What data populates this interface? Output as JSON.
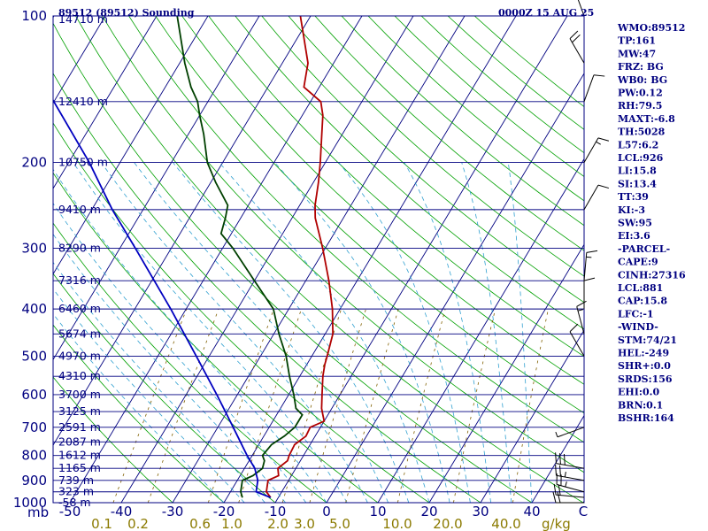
{
  "header": {
    "station": "89512 (89512) Sounding",
    "time": "0000Z 15 AUG 25"
  },
  "chart_data": {
    "type": "line",
    "title": "89512 (89512) Sounding",
    "xlabel": "",
    "ylabel": "mb",
    "xlim": [
      -50,
      50
    ],
    "ylim": [
      1000,
      100
    ],
    "y_scale": "log",
    "pressure_ticks": [
      100,
      200,
      300,
      400,
      500,
      600,
      700,
      800,
      900,
      1000
    ],
    "pressure_tick_labels": [
      "100",
      "200",
      "300",
      "400",
      "500",
      "600",
      "700",
      "800",
      "900",
      "1000"
    ],
    "temp_ticks": [
      -50,
      -40,
      -30,
      -20,
      -10,
      0,
      10,
      20,
      30,
      40,
      50
    ],
    "temp_tick_labels": [
      "-50",
      "-40",
      "-30",
      "-20",
      "-10",
      "0",
      "10",
      "20",
      "30",
      "40",
      "C"
    ],
    "mixing_ratio_ticks": [
      0.1,
      0.2,
      0.6,
      1.0,
      2.0,
      3.0,
      5.0,
      10.0,
      20.0,
      40.0
    ],
    "mixing_ratio_labels": [
      "0.1",
      "0.2",
      "0.6",
      "1.0",
      "2.0",
      "3.0",
      "5.0",
      "10.0",
      "20.0",
      "40.0"
    ],
    "mixing_ratio_unit": "g/kg",
    "height_labels": [
      {
        "p": 150,
        "label": "12410 m"
      },
      {
        "p": 200,
        "label": "10750 m"
      },
      {
        "p": 250,
        "label": "9410 m"
      },
      {
        "p": 300,
        "label": "8290 m"
      },
      {
        "p": 350,
        "label": "7316 m"
      },
      {
        "p": 400,
        "label": "6460 m"
      },
      {
        "p": 450,
        "label": "5674 m"
      },
      {
        "p": 500,
        "label": "4970 m"
      },
      {
        "p": 550,
        "label": "4310 m"
      },
      {
        "p": 600,
        "label": "3700 m"
      },
      {
        "p": 650,
        "label": "3125 m"
      },
      {
        "p": 700,
        "label": "2591 m"
      },
      {
        "p": 750,
        "label": "2087 m"
      },
      {
        "p": 800,
        "label": "1612 m"
      },
      {
        "p": 850,
        "label": "1165 m"
      },
      {
        "p": 900,
        "label": "739 m"
      },
      {
        "p": 950,
        "label": "323 m"
      },
      {
        "p": 1000,
        "label": "-58 m"
      }
    ],
    "top_height_label": {
      "p": 100,
      "label": "14710 m"
    },
    "series": [
      {
        "name": "",
        "color": "#b00000",
        "p": [
          976,
          950,
          925,
          900,
          880,
          850,
          820,
          800,
          760,
          730,
          700,
          680,
          660,
          640,
          600,
          550,
          520,
          500,
          450,
          400,
          350,
          300,
          260,
          245,
          220,
          200,
          175,
          160,
          150,
          140,
          125,
          110,
          100
        ],
        "t": [
          -11.5,
          -13,
          -13.5,
          -14,
          -12.5,
          -13.5,
          -12.5,
          -12.8,
          -13,
          -11.8,
          -12,
          -10,
          -11,
          -12,
          -13.5,
          -15.5,
          -16.5,
          -17,
          -18.5,
          -21.5,
          -25.5,
          -30.5,
          -35.5,
          -37,
          -39,
          -41,
          -44,
          -46,
          -48,
          -53,
          -55,
          -59,
          -62
        ]
      },
      {
        "name": "",
        "color": "#004000",
        "p": [
          976,
          950,
          925,
          900,
          880,
          850,
          820,
          800,
          760,
          730,
          700,
          680,
          660,
          640,
          600,
          550,
          500,
          450,
          400,
          350,
          300,
          280,
          260,
          245,
          220,
          200,
          175,
          160,
          150,
          140,
          125,
          110,
          100
        ],
        "t": [
          -17,
          -18,
          -18.5,
          -19,
          -17.5,
          -16.5,
          -17,
          -18,
          -17.5,
          -16,
          -15,
          -15,
          -15,
          -17,
          -19,
          -22,
          -25,
          -29,
          -33,
          -40,
          -48,
          -52,
          -53,
          -54,
          -59,
          -63,
          -67,
          -70,
          -72,
          -75,
          -79,
          -83,
          -86
        ]
      },
      {
        "name": "",
        "color": "#0000c0",
        "p": [
          976,
          950,
          900,
          850,
          800,
          700,
          600,
          500,
          400,
          300,
          250,
          200,
          150,
          100
        ],
        "t": [
          -11.5,
          -15,
          -16,
          -18,
          -21,
          -27,
          -34,
          -42.5,
          -53,
          -67,
          -76,
          -86,
          -100,
          -120
        ]
      }
    ],
    "wind_barbs": [
      {
        "p": 1000,
        "dir": 270,
        "spd": 20
      },
      {
        "p": 975,
        "dir": 275,
        "spd": 20
      },
      {
        "p": 950,
        "dir": 285,
        "spd": 25
      },
      {
        "p": 900,
        "dir": 280,
        "spd": 25
      },
      {
        "p": 850,
        "dir": 280,
        "spd": 30
      },
      {
        "p": 700,
        "dir": 250,
        "spd": 5
      },
      {
        "p": 500,
        "dir": 330,
        "spd": 10
      },
      {
        "p": 450,
        "dir": 345,
        "spd": 15
      },
      {
        "p": 400,
        "dir": 360,
        "spd": 10
      },
      {
        "p": 350,
        "dir": 5,
        "spd": 15
      },
      {
        "p": 250,
        "dir": 30,
        "spd": 10
      },
      {
        "p": 200,
        "dir": 30,
        "spd": 15
      },
      {
        "p": 150,
        "dir": 20,
        "spd": 10
      },
      {
        "p": 125,
        "dir": 330,
        "spd": 20
      },
      {
        "p": 100,
        "dir": 340,
        "spd": 50
      }
    ]
  },
  "indices": [
    "WMO:89512",
    "TP:161",
    "MW:47",
    "FRZ: BG",
    "WB0: BG",
    "PW:0.12",
    "RH:79.5",
    "MAXT:-6.8",
    "TH:5028",
    "L57:6.2",
    "LCL:926",
    "LI:15.8",
    "SI:13.4",
    "TT:39",
    "KI:-3",
    "SW:95",
    "EI:3.6",
    "-PARCEL-",
    "CAPE:9",
    "CINH:27316",
    "LCL:881",
    "CAP:15.8",
    "LFC:-1",
    "-WIND-",
    "STM:74/21",
    "HEL:-249",
    "SHR+:0.0",
    "SRDS:156",
    "EHI:0.0",
    "BRN:0.1",
    "BSHR:164"
  ],
  "colors": {
    "frame": "#000080",
    "isobar": "#000080",
    "isotherm": "#000080",
    "dry_adiabat": "#00a000",
    "moist_adiabat": "#30a0d0",
    "mixing_ratio": "#806000",
    "temperature": "#b00000",
    "dewpoint": "#004000",
    "parcel": "#0000c0"
  }
}
